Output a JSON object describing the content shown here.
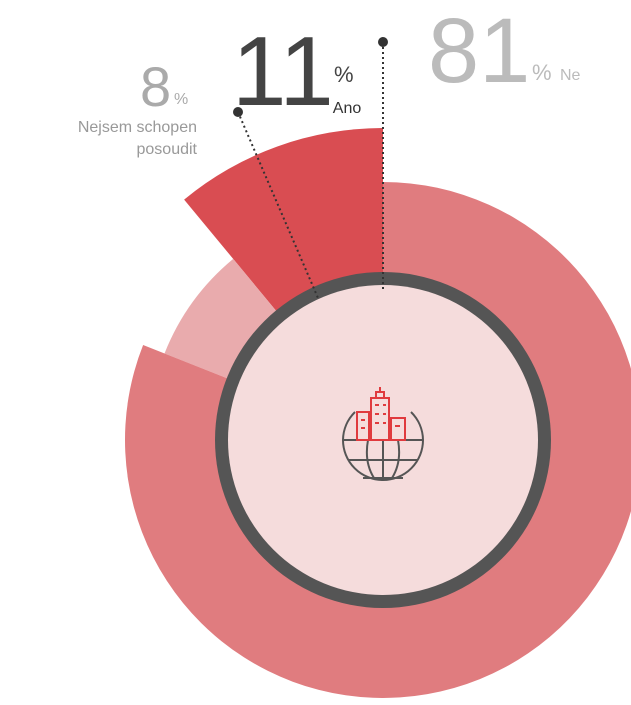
{
  "chart_data": {
    "type": "pie",
    "categories": [
      "Ano",
      "Nejsem schopen posoudit",
      "Ne"
    ],
    "values": [
      11,
      8,
      81
    ],
    "unit": "%",
    "colors": [
      "#d94d52",
      "#e9abad",
      "#e07c7f"
    ]
  }
}
